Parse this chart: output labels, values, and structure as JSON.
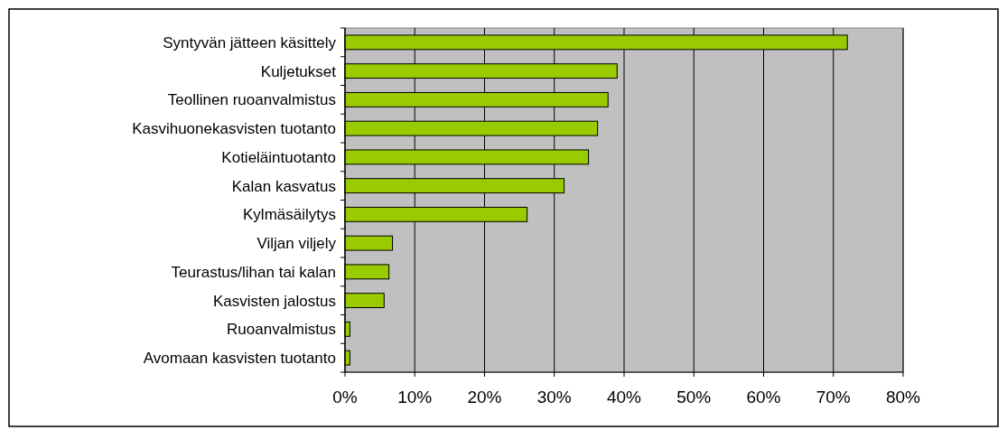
{
  "chart_data": {
    "type": "bar",
    "orientation": "horizontal",
    "categories": [
      "Syntyvän jätteen käsittely",
      "Kuljetukset",
      "Teollinen ruoanvalmistus",
      "Kasvihuonekasvisten tuotanto",
      "Kotieläintuotanto",
      "Kalan kasvatus",
      "Kylmäsäilytys",
      "Viljan viljely",
      "Teurastus/lihan tai kalan",
      "Kasvisten jalostus",
      "Ruoanvalmistus",
      "Avomaan kasvisten tuotanto"
    ],
    "values": [
      72,
      39,
      37.7,
      36.2,
      34.9,
      31.4,
      26.1,
      6.8,
      6.3,
      5.6,
      0.7,
      0.7
    ],
    "color": "#99cc00",
    "xlim": [
      0,
      80
    ],
    "xticks": [
      {
        "value": 0,
        "label": "0%"
      },
      {
        "value": 10,
        "label": "10%"
      },
      {
        "value": 20,
        "label": "20%"
      },
      {
        "value": 30,
        "label": "30%"
      },
      {
        "value": 40,
        "label": "40%"
      },
      {
        "value": 50,
        "label": "50%"
      },
      {
        "value": 60,
        "label": "60%"
      },
      {
        "value": 70,
        "label": "70%"
      },
      {
        "value": 80,
        "label": "80%"
      }
    ],
    "grid": "x"
  }
}
